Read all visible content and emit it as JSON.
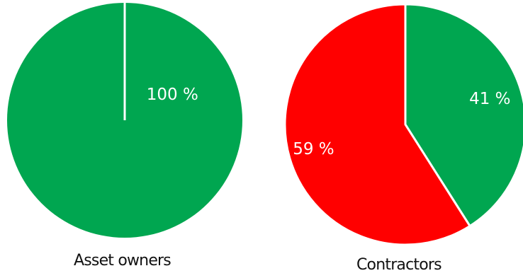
{
  "chart_data": [
    {
      "type": "pie",
      "title": "Asset owners",
      "slices": [
        {
          "label": "100 %",
          "value": 100,
          "color": "#00a650"
        }
      ]
    },
    {
      "type": "pie",
      "title": "Contractors",
      "slices": [
        {
          "label": "41 %",
          "value": 41,
          "color": "#00a650"
        },
        {
          "label": "59 %",
          "value": 59,
          "color": "#ff0000"
        }
      ]
    }
  ]
}
